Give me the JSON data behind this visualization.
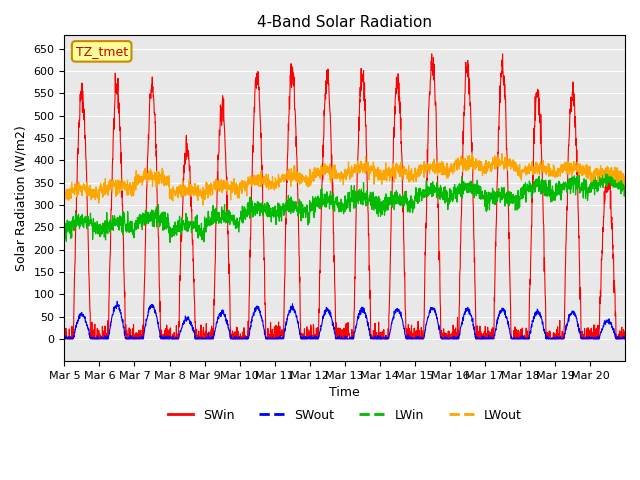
{
  "title": "4-Band Solar Radiation",
  "xlabel": "Time",
  "ylabel": "Solar Radiation (W/m2)",
  "ylim": [
    -50,
    680
  ],
  "yticks": [
    0,
    50,
    100,
    150,
    200,
    250,
    300,
    350,
    400,
    450,
    500,
    550,
    600,
    650
  ],
  "xtick_positions": [
    0,
    1,
    2,
    3,
    4,
    5,
    6,
    7,
    8,
    9,
    10,
    11,
    12,
    13,
    14,
    15
  ],
  "xtick_labels": [
    "Mar 5",
    "Mar 6",
    "Mar 7",
    "Mar 8",
    "Mar 9",
    "Mar 10",
    "Mar 11",
    "Mar 12",
    "Mar 13",
    "Mar 14",
    "Mar 15",
    "Mar 16",
    "Mar 17",
    "Mar 18",
    "Mar 19",
    "Mar 20"
  ],
  "annotation_text": "TZ_tmet",
  "annotation_color": "#cc0000",
  "annotation_bg": "#ffff99",
  "annotation_edge": "#cc8800",
  "colors": {
    "SWin": "#ff0000",
    "SWout": "#0000ff",
    "LWin": "#00bb00",
    "LWout": "#ffa500"
  },
  "peaks_swin": [
    550,
    560,
    565,
    430,
    520,
    590,
    600,
    580,
    585,
    575,
    620,
    605,
    610,
    550,
    555,
    360
  ],
  "peaks_swout": [
    55,
    75,
    75,
    45,
    60,
    70,
    70,
    65,
    65,
    65,
    70,
    65,
    65,
    60,
    60,
    40
  ],
  "lwin_base": 270,
  "lwin_offsets": [
    -30,
    -25,
    -20,
    -30,
    -10,
    0,
    10,
    20,
    30,
    20,
    30,
    40,
    40,
    50,
    60,
    70
  ],
  "lwout_base": [
    320,
    330,
    350,
    320,
    330,
    340,
    350,
    360,
    370,
    360,
    370,
    380,
    380,
    370,
    370,
    360
  ],
  "n_days": 16,
  "pts_per_day": 144,
  "background_color": "#e8e8e8"
}
